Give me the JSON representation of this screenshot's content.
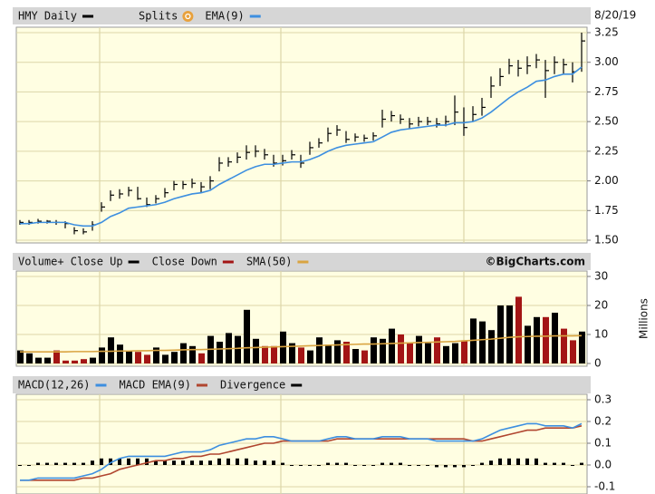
{
  "chart_data": [
    {
      "type": "hlc",
      "date": "8/20/19",
      "ylim": [
        1.5,
        3.25
      ],
      "yticks": [
        {
          "value": 1.5,
          "label": "1.50"
        },
        {
          "value": 1.75,
          "label": "1.75"
        },
        {
          "value": 2,
          "label": "2.00"
        },
        {
          "value": 2.25,
          "label": "2.25"
        },
        {
          "value": 2.5,
          "label": "2.50"
        },
        {
          "value": 2.75,
          "label": "2.75"
        },
        {
          "value": 3,
          "label": "3.00"
        },
        {
          "value": 3.25,
          "label": "3.25"
        }
      ],
      "grid": true,
      "series": [
        {
          "name": "HMY Daily",
          "color": "#000000",
          "high": [
            1.67,
            1.67,
            1.68,
            1.67,
            1.67,
            1.66,
            1.61,
            1.6,
            1.66,
            1.82,
            1.92,
            1.93,
            1.95,
            1.95,
            1.86,
            1.88,
            1.94,
            2.0,
            2.0,
            2.02,
            1.99,
            2.04,
            2.2,
            2.2,
            2.24,
            2.3,
            2.3,
            2.27,
            2.22,
            2.22,
            2.26,
            2.22,
            2.33,
            2.36,
            2.45,
            2.47,
            2.42,
            2.4,
            2.39,
            2.41,
            2.6,
            2.59,
            2.56,
            2.53,
            2.54,
            2.54,
            2.53,
            2.55,
            2.72,
            2.62,
            2.63,
            2.7,
            2.88,
            2.95,
            3.03,
            3.02,
            3.05,
            3.07,
            3.02,
            3.05,
            3.03,
            3.0,
            3.25
          ],
          "low": [
            1.63,
            1.63,
            1.64,
            1.64,
            1.63,
            1.6,
            1.55,
            1.55,
            1.58,
            1.74,
            1.83,
            1.85,
            1.87,
            1.84,
            1.78,
            1.81,
            1.86,
            1.92,
            1.93,
            1.94,
            1.9,
            1.93,
            2.08,
            2.12,
            2.15,
            2.18,
            2.2,
            2.18,
            2.12,
            2.13,
            2.18,
            2.11,
            2.22,
            2.28,
            2.33,
            2.38,
            2.32,
            2.33,
            2.33,
            2.34,
            2.45,
            2.5,
            2.48,
            2.44,
            2.46,
            2.47,
            2.45,
            2.46,
            2.47,
            2.38,
            2.5,
            2.55,
            2.7,
            2.8,
            2.9,
            2.88,
            2.9,
            2.95,
            2.7,
            2.9,
            2.9,
            2.83,
            2.92
          ],
          "close": [
            1.65,
            1.65,
            1.66,
            1.66,
            1.65,
            1.64,
            1.58,
            1.57,
            1.63,
            1.78,
            1.88,
            1.89,
            1.92,
            1.85,
            1.8,
            1.85,
            1.9,
            1.97,
            1.97,
            1.98,
            1.95,
            2.0,
            2.15,
            2.16,
            2.2,
            2.24,
            2.25,
            2.22,
            2.15,
            2.17,
            2.22,
            2.15,
            2.28,
            2.32,
            2.4,
            2.43,
            2.35,
            2.37,
            2.36,
            2.38,
            2.52,
            2.55,
            2.52,
            2.48,
            2.5,
            2.5,
            2.48,
            2.5,
            2.58,
            2.45,
            2.56,
            2.62,
            2.8,
            2.88,
            2.97,
            2.95,
            2.97,
            3.02,
            2.93,
            3.0,
            2.98,
            2.92,
            3.18
          ]
        },
        {
          "name": "Splits",
          "color": "#e8a13c"
        },
        {
          "name": "EMA(9)",
          "color": "#3d8fe0",
          "values": [
            1.64,
            1.64,
            1.65,
            1.65,
            1.65,
            1.65,
            1.63,
            1.62,
            1.62,
            1.65,
            1.7,
            1.73,
            1.77,
            1.78,
            1.79,
            1.8,
            1.82,
            1.85,
            1.87,
            1.89,
            1.9,
            1.92,
            1.97,
            2.01,
            2.05,
            2.09,
            2.12,
            2.14,
            2.14,
            2.15,
            2.16,
            2.16,
            2.18,
            2.21,
            2.25,
            2.28,
            2.3,
            2.31,
            2.32,
            2.33,
            2.37,
            2.41,
            2.43,
            2.44,
            2.45,
            2.46,
            2.47,
            2.47,
            2.49,
            2.49,
            2.5,
            2.53,
            2.58,
            2.64,
            2.7,
            2.75,
            2.79,
            2.84,
            2.85,
            2.88,
            2.9,
            2.9,
            2.96
          ]
        }
      ]
    },
    {
      "type": "volume",
      "ylabel": "Millions",
      "credit": "©BigCharts.com",
      "ylim": [
        0,
        30
      ],
      "yticks": [
        0,
        10,
        20,
        30
      ],
      "grid": true,
      "series": [
        {
          "name": "Volume+ Close Up",
          "color": "#000000",
          "values": [
            4.5,
            3.5,
            2,
            2,
            4.5,
            1,
            1,
            1.5,
            2,
            5.5,
            9,
            6.5,
            4.5,
            4,
            3,
            5.5,
            3,
            4,
            7,
            6,
            3.5,
            9.5,
            7.5,
            10.5,
            9.5,
            18.5,
            8.5,
            6,
            6,
            11,
            7,
            5.5,
            4.5,
            9,
            6.5,
            8,
            7.5,
            5,
            4.5,
            9,
            8.5,
            12,
            10,
            7,
            9.5,
            7,
            9,
            6,
            7,
            8,
            15.5,
            14.5,
            11.5,
            20,
            20,
            23,
            13,
            16,
            16,
            17.5,
            12,
            8,
            11
          ]
        },
        {
          "name": "Close Down",
          "color": "#a31515"
        },
        {
          "name": "SMA(50)",
          "color": "#d9a441",
          "values": [
            4.0,
            4.0,
            4.0,
            4.0,
            4.0,
            4.0,
            4.1,
            4.1,
            4.1,
            4.2,
            4.2,
            4.3,
            4.3,
            4.4,
            4.4,
            4.5,
            4.5,
            4.6,
            4.7,
            4.8,
            4.8,
            4.9,
            5.0,
            5.1,
            5.2,
            5.4,
            5.5,
            5.6,
            5.7,
            5.8,
            5.9,
            6.0,
            6.1,
            6.2,
            6.3,
            6.4,
            6.5,
            6.6,
            6.7,
            6.7,
            6.8,
            6.9,
            7.0,
            7.1,
            7.2,
            7.3,
            7.4,
            7.5,
            7.6,
            7.8,
            8.0,
            8.2,
            8.4,
            8.7,
            9.0,
            9.2,
            9.3,
            9.4,
            9.4,
            9.5,
            9.5,
            9.5,
            9.6
          ]
        }
      ]
    },
    {
      "type": "macd",
      "ylim": [
        -0.1,
        0.3
      ],
      "yticks": [
        -0.1,
        {
          "value": 0,
          "label": "0.0"
        },
        0.1,
        0.2,
        0.3
      ],
      "grid": true,
      "series": [
        {
          "name": "MACD(12,26)",
          "color": "#3d8fe0",
          "values": [
            -0.07,
            -0.07,
            -0.06,
            -0.06,
            -0.06,
            -0.06,
            -0.06,
            -0.05,
            -0.04,
            -0.02,
            0.01,
            0.03,
            0.04,
            0.04,
            0.04,
            0.04,
            0.04,
            0.05,
            0.06,
            0.06,
            0.06,
            0.07,
            0.09,
            0.1,
            0.11,
            0.12,
            0.12,
            0.13,
            0.13,
            0.12,
            0.11,
            0.11,
            0.11,
            0.11,
            0.12,
            0.13,
            0.13,
            0.12,
            0.12,
            0.12,
            0.13,
            0.13,
            0.13,
            0.12,
            0.12,
            0.12,
            0.11,
            0.11,
            0.11,
            0.11,
            0.11,
            0.12,
            0.14,
            0.16,
            0.17,
            0.18,
            0.19,
            0.19,
            0.18,
            0.18,
            0.18,
            0.17,
            0.19
          ]
        },
        {
          "name": "MACD EMA(9)",
          "color": "#b0452f",
          "values": [
            -0.07,
            -0.07,
            -0.07,
            -0.07,
            -0.07,
            -0.07,
            -0.07,
            -0.06,
            -0.06,
            -0.05,
            -0.04,
            -0.02,
            -0.01,
            0.0,
            0.01,
            0.02,
            0.02,
            0.03,
            0.03,
            0.04,
            0.04,
            0.05,
            0.05,
            0.06,
            0.07,
            0.08,
            0.09,
            0.1,
            0.1,
            0.11,
            0.11,
            0.11,
            0.11,
            0.11,
            0.11,
            0.12,
            0.12,
            0.12,
            0.12,
            0.12,
            0.12,
            0.12,
            0.12,
            0.12,
            0.12,
            0.12,
            0.12,
            0.12,
            0.12,
            0.12,
            0.11,
            0.11,
            0.12,
            0.13,
            0.14,
            0.15,
            0.16,
            0.16,
            0.17,
            0.17,
            0.17,
            0.17,
            0.18
          ]
        },
        {
          "name": "Divergence",
          "color": "#000000",
          "values": [
            0.0,
            0.0,
            0.01,
            0.01,
            0.01,
            0.01,
            0.01,
            0.01,
            0.02,
            0.03,
            0.03,
            0.03,
            0.03,
            0.03,
            0.03,
            0.02,
            0.02,
            0.02,
            0.02,
            0.02,
            0.02,
            0.02,
            0.03,
            0.03,
            0.03,
            0.03,
            0.02,
            0.02,
            0.02,
            0.01,
            0.0,
            0.0,
            0.0,
            0.0,
            0.01,
            0.01,
            0.01,
            0.0,
            0.0,
            0.0,
            0.01,
            0.01,
            0.01,
            0.0,
            0.0,
            0.0,
            -0.01,
            -0.01,
            -0.01,
            -0.01,
            0.0,
            0.01,
            0.02,
            0.03,
            0.03,
            0.03,
            0.03,
            0.03,
            0.01,
            0.01,
            0.01,
            0.0,
            0.01
          ]
        }
      ]
    }
  ]
}
